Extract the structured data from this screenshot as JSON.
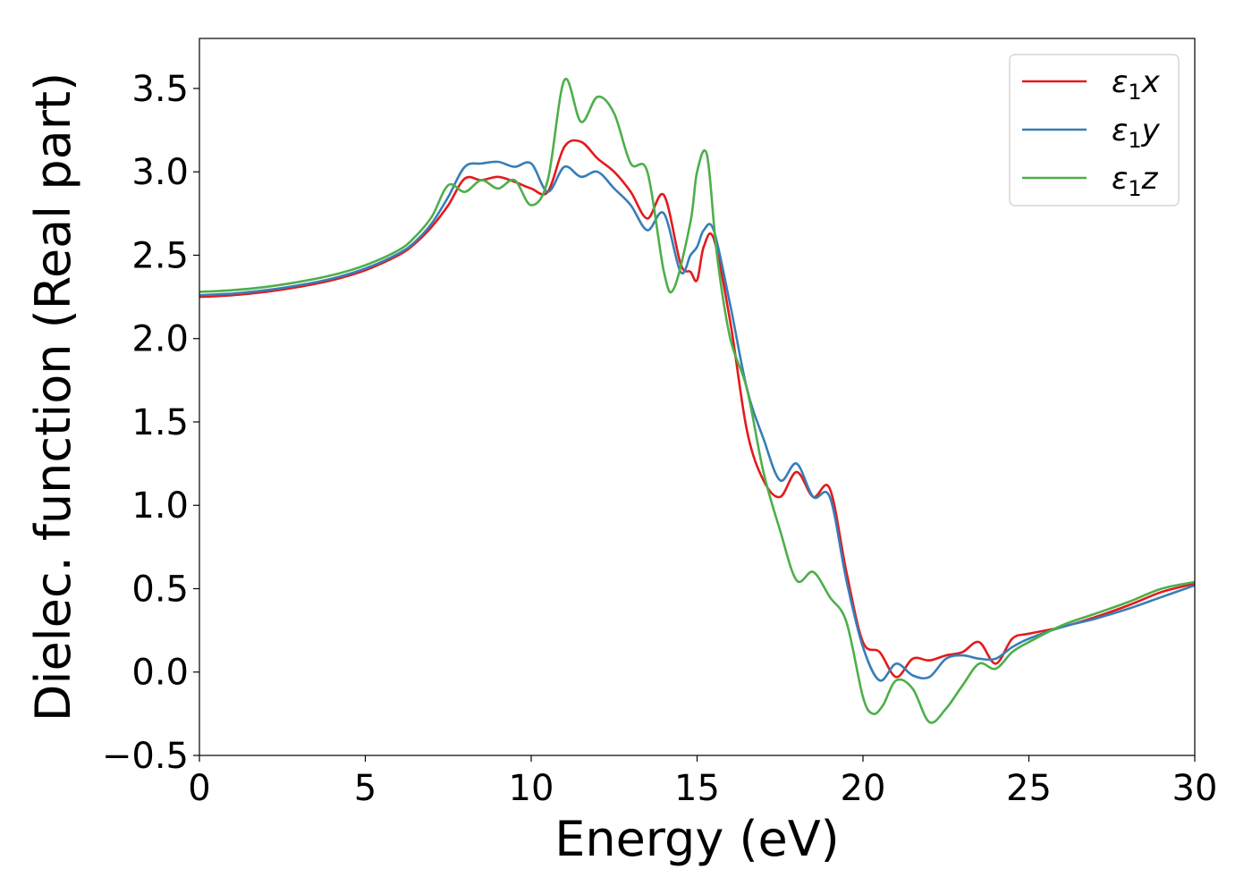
{
  "chart_data": {
    "type": "line",
    "xlabel": "Energy (eV)",
    "ylabel": "Dielec. function (Real part)",
    "xlim": [
      0,
      30
    ],
    "ylim": [
      -0.5,
      3.8
    ],
    "xticks": [
      0,
      5,
      10,
      15,
      20,
      25,
      30
    ],
    "yticks": [
      -0.5,
      0.0,
      0.5,
      1.0,
      1.5,
      2.0,
      2.5,
      3.0,
      3.5
    ],
    "xtick_labels": [
      "0",
      "5",
      "10",
      "15",
      "20",
      "25",
      "30"
    ],
    "ytick_labels": [
      "−0.5",
      "0.0",
      "0.5",
      "1.0",
      "1.5",
      "2.0",
      "2.5",
      "3.0",
      "3.5"
    ],
    "grid": false,
    "legend_position": "top-right",
    "series": [
      {
        "name": "ε₁x",
        "label_base": "ε",
        "label_sub": "1",
        "label_var": "x",
        "color": "#e41a1c",
        "x": [
          0,
          1,
          2,
          3,
          4,
          5,
          6,
          6.5,
          7,
          7.5,
          8,
          8.5,
          9,
          9.5,
          10,
          10.5,
          11,
          11.5,
          12,
          12.5,
          13,
          13.5,
          14,
          14.5,
          14.8,
          15,
          15.2,
          15.5,
          16,
          16.5,
          17,
          17.5,
          18,
          18.5,
          19,
          19.5,
          20,
          20.5,
          21,
          21.5,
          22,
          22.5,
          23,
          23.5,
          24,
          24.5,
          25,
          26,
          27,
          28,
          29,
          30
        ],
        "y": [
          2.25,
          2.26,
          2.28,
          2.31,
          2.35,
          2.41,
          2.5,
          2.57,
          2.67,
          2.8,
          2.96,
          2.95,
          2.97,
          2.94,
          2.9,
          2.88,
          3.15,
          3.18,
          3.08,
          3.0,
          2.88,
          2.72,
          2.86,
          2.45,
          2.4,
          2.35,
          2.55,
          2.6,
          2.1,
          1.45,
          1.15,
          1.05,
          1.2,
          1.05,
          1.1,
          0.6,
          0.18,
          0.12,
          -0.03,
          0.08,
          0.07,
          0.1,
          0.12,
          0.18,
          0.05,
          0.2,
          0.23,
          0.27,
          0.33,
          0.4,
          0.48,
          0.53
        ]
      },
      {
        "name": "ε₁y",
        "label_base": "ε",
        "label_sub": "1",
        "label_var": "y",
        "color": "#377eb8",
        "x": [
          0,
          1,
          2,
          3,
          4,
          5,
          6,
          6.5,
          7,
          7.5,
          8,
          8.5,
          9,
          9.5,
          10,
          10.5,
          11,
          11.5,
          12,
          12.5,
          13,
          13.5,
          14,
          14.5,
          14.8,
          15,
          15.2,
          15.5,
          16,
          16.5,
          17,
          17.5,
          18,
          18.5,
          19,
          19.5,
          20,
          20.5,
          21,
          21.5,
          22,
          22.5,
          23,
          23.5,
          24,
          24.5,
          25,
          26,
          27,
          28,
          29,
          30
        ],
        "y": [
          2.26,
          2.27,
          2.29,
          2.32,
          2.36,
          2.42,
          2.51,
          2.58,
          2.69,
          2.85,
          3.03,
          3.05,
          3.06,
          3.03,
          3.05,
          2.88,
          3.03,
          2.97,
          3.0,
          2.9,
          2.8,
          2.65,
          2.75,
          2.4,
          2.5,
          2.55,
          2.65,
          2.65,
          2.2,
          1.7,
          1.4,
          1.15,
          1.25,
          1.05,
          1.05,
          0.55,
          0.15,
          -0.05,
          0.05,
          -0.02,
          -0.03,
          0.08,
          0.1,
          0.08,
          0.08,
          0.15,
          0.2,
          0.27,
          0.32,
          0.38,
          0.45,
          0.52
        ]
      },
      {
        "name": "ε₁z",
        "label_base": "ε",
        "label_sub": "1",
        "label_var": "z",
        "color": "#4daf4a",
        "x": [
          0,
          1,
          2,
          3,
          4,
          5,
          6,
          6.5,
          7,
          7.5,
          8,
          8.5,
          9,
          9.5,
          10,
          10.5,
          11,
          11.5,
          12,
          12.5,
          13,
          13.5,
          14,
          14.3,
          14.8,
          15,
          15.3,
          15.6,
          16,
          16.5,
          17,
          17.5,
          18,
          18.5,
          19,
          19.5,
          20,
          20.3,
          20.6,
          21,
          21.5,
          22,
          22.5,
          23,
          23.5,
          24,
          24.5,
          25,
          26,
          27,
          28,
          29,
          30
        ],
        "y": [
          2.28,
          2.29,
          2.31,
          2.34,
          2.38,
          2.44,
          2.53,
          2.61,
          2.73,
          2.92,
          2.88,
          2.95,
          2.9,
          2.95,
          2.8,
          2.95,
          3.55,
          3.3,
          3.45,
          3.35,
          3.05,
          3.0,
          2.4,
          2.3,
          2.7,
          3.0,
          3.1,
          2.5,
          2.0,
          1.7,
          1.2,
          0.85,
          0.55,
          0.6,
          0.45,
          0.3,
          -0.15,
          -0.25,
          -0.2,
          -0.05,
          -0.1,
          -0.3,
          -0.22,
          -0.08,
          0.05,
          0.02,
          0.12,
          0.18,
          0.28,
          0.35,
          0.42,
          0.5,
          0.54
        ]
      }
    ]
  }
}
